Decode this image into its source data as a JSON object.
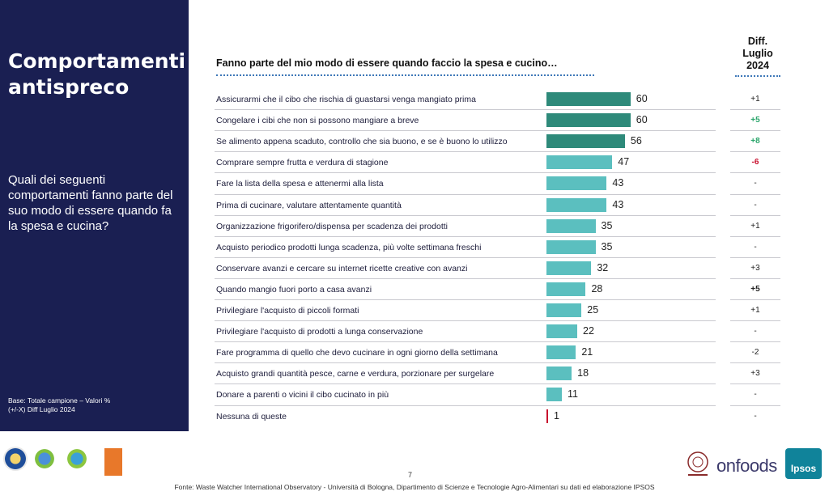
{
  "side": {
    "title": "Comportamenti antispreco",
    "question": "Quali dei seguenti comportamenti fanno parte del suo modo di essere quando fa la spesa e cucina?",
    "base": "Base: Totale campione – Valori %\n(+/-X) Diff Luglio 2024"
  },
  "colors": {
    "panel": "#1a1f52",
    "bar_dark": "#2e8a7a",
    "bar_light": "#5bbfbf",
    "bar_none": "#c8102e",
    "diff_positive": "#2aa56b",
    "diff_negative": "#c8102e"
  },
  "chart_data": {
    "type": "bar",
    "orientation": "horizontal",
    "title": "Fanno parte del mio modo di essere quando faccio la spesa e cucino…",
    "diff_header": [
      "Diff.",
      "Luglio",
      "2024"
    ],
    "xlim": [
      0,
      100
    ],
    "categories": [
      "Assicurarmi che il cibo che rischia di guastarsi venga mangiato prima",
      "Congelare i cibi che non si possono mangiare a breve",
      "Se alimento appena scaduto, controllo che sia buono, e se è buono lo utilizzo",
      "Comprare sempre frutta e verdura di stagione",
      "Fare la lista della spesa e attenermi alla lista",
      "Prima di cucinare, valutare attentamente quantità",
      "Organizzazione frigorifero/dispensa per scadenza dei prodotti",
      "Acquisto periodico prodotti lunga scadenza, più volte settimana freschi",
      "Conservare avanzi e cercare su internet ricette creative con avanzi",
      "Quando mangio fuori porto a casa avanzi",
      "Privilegiare l'acquisto di piccoli formati",
      "Privilegiare l'acquisto di prodotti a lunga conservazione",
      "Fare programma di quello che devo cucinare in ogni giorno della settimana",
      "Acquisto grandi quantità pesce, carne e verdura, porzionare per surgelare",
      "Donare a parenti o vicini il cibo cucinato in più",
      "Nessuna di queste"
    ],
    "values": [
      60,
      60,
      56,
      47,
      43,
      43,
      35,
      35,
      32,
      28,
      25,
      22,
      21,
      18,
      11,
      1
    ],
    "bar_style": [
      "dark",
      "dark",
      "dark",
      "light",
      "light",
      "light",
      "light",
      "light",
      "light",
      "light",
      "light",
      "light",
      "light",
      "light",
      "light",
      "none"
    ],
    "diff": [
      "+1",
      "+5",
      "+8",
      "-6",
      "-",
      "-",
      "+1",
      "-",
      "+3",
      "+5",
      "+1",
      "-",
      "-2",
      "+3",
      "-",
      "-"
    ],
    "diff_style": [
      "plain",
      "positive",
      "positive",
      "negative",
      "plain",
      "plain",
      "plain",
      "plain",
      "plain",
      "bold",
      "plain",
      "plain",
      "plain",
      "plain",
      "plain",
      "plain"
    ]
  },
  "footer": {
    "page": "7",
    "source": "Fonte: Waste Watcher International Observatory - Università di Bologna, Dipartimento di Scienze e Tecnologie Agro-Alimentari su dati ed elaborazione IPSOS",
    "logo_onfoods": "onfoods",
    "logo_ipsos": "Ipsos"
  }
}
